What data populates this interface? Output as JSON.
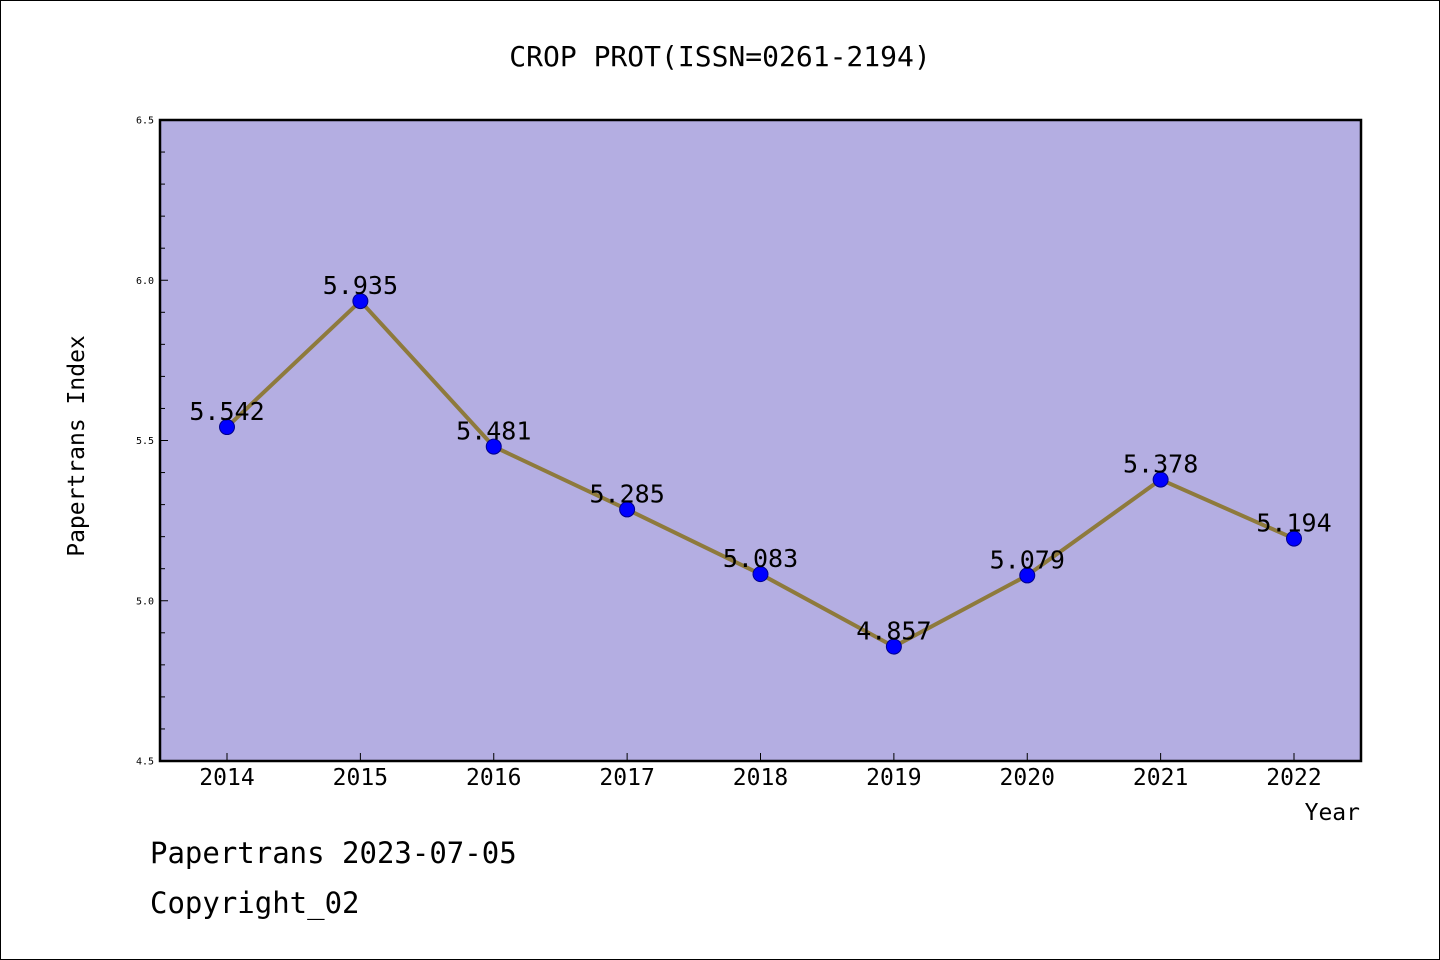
{
  "colors": {
    "plot_background": "#b4aee2",
    "line": "#8e7a3c",
    "marker": "#0000ff",
    "marker_edge": "#00008b",
    "axes": "#000000"
  },
  "chart_data": {
    "type": "line",
    "title": "CROP PROT(ISSN=0261-2194)",
    "xlabel": "Year",
    "ylabel": "Papertrans Index",
    "categories": [
      "2014",
      "2015",
      "2016",
      "2017",
      "2018",
      "2019",
      "2020",
      "2021",
      "2022"
    ],
    "series": [
      {
        "values": [
          5.542,
          5.935,
          5.481,
          5.285,
          5.083,
          4.857,
          5.079,
          5.378,
          5.194
        ],
        "labels": [
          "5.542",
          "5.935",
          "5.481",
          "5.285",
          "5.083",
          "4.857",
          "5.079",
          "5.378",
          "5.194"
        ]
      }
    ],
    "ylim": [
      4.5,
      6.5
    ],
    "yticks": [
      "4.5",
      "5.0",
      "5.5",
      "6.0",
      "6.5"
    ],
    "grid": false,
    "legend": "none"
  },
  "footer": {
    "line1": "Papertrans 2023-07-05",
    "line2": "Copyright_02"
  }
}
